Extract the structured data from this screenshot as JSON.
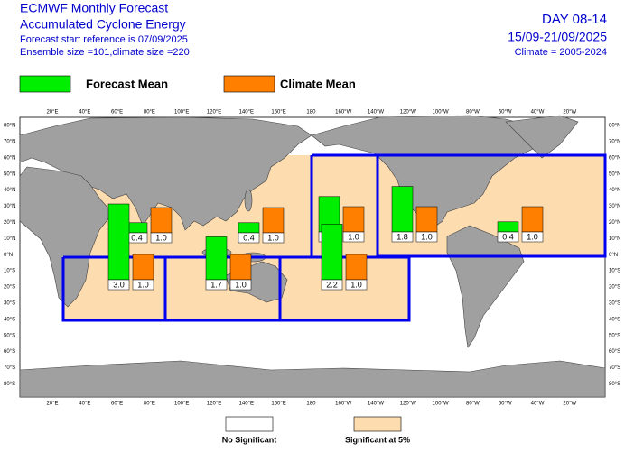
{
  "header": {
    "title": "ECMWF Monthly Forecast",
    "subtitle": "Accumulated Cyclone Energy",
    "start_reference": "Forecast start reference is 07/09/2025",
    "ensemble": "Ensemble size =101,climate size =220",
    "day": "DAY 08-14",
    "period": "15/09-21/09/2025",
    "climate": "Climate = 2005-2024"
  },
  "legend": {
    "forecast": "Forecast Mean",
    "forecast_color": "#00ee00",
    "climate": "Climate Mean",
    "climate_color": "#ff7f00"
  },
  "regions": [
    {
      "forecast": 0.4,
      "climate": {
        "value": 1,
        "label": "1.0"
      }
    },
    {
      "forecast": 0.4,
      "climate": {
        "value": 1,
        "label": "1.0"
      }
    },
    {
      "forecast": 1.4,
      "climate": {
        "value": 1,
        "label": "1.0"
      }
    },
    {
      "forecast": 1.8,
      "climate": {
        "value": 1,
        "label": "1.0"
      }
    },
    {
      "forecast": 0.4,
      "climate": {
        "value": 1,
        "label": "1.0"
      }
    },
    {
      "forecast": {
        "value": 3,
        "label": "3.0"
      },
      "climate": {
        "value": 1,
        "label": "1.0"
      }
    },
    {
      "forecast": 1.7,
      "climate": {
        "value": 1,
        "label": "1.0"
      }
    },
    {
      "forecast": 2.2,
      "climate": {
        "value": 1,
        "label": "1.0"
      }
    }
  ],
  "latitudes": [
    "80°N",
    "70°N",
    "60°N",
    "50°N",
    "40°N",
    "30°N",
    "20°N",
    "10°N",
    "0°N",
    "10°S",
    "20°S",
    "30°S",
    "40°S",
    "50°S",
    "60°S",
    "70°S",
    "80°S"
  ],
  "longitudes": [
    "20°E",
    "40°E",
    "60°E",
    "80°E",
    "100°E",
    "120°E",
    "140°E",
    "160°E",
    "180",
    "160°W",
    "140°W",
    "120°W",
    "100°W",
    "80°W",
    "60°W",
    "40°W",
    "20°W"
  ],
  "footer": {
    "not_significant": "No Significant",
    "significant": "Significant at 5%"
  }
}
